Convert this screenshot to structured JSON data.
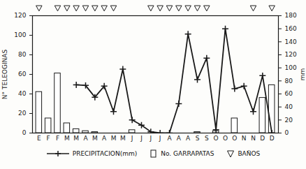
{
  "chart_data": {
    "type": "bar",
    "categories": [
      "E",
      "F",
      "F",
      "M",
      "M",
      "A",
      "M",
      "A",
      "M",
      "M",
      "J",
      "J",
      "J",
      "J",
      "A",
      "A",
      "A",
      "S",
      "S",
      "O",
      "O",
      "O",
      "N",
      "N",
      "D",
      "D"
    ],
    "y_label": "N° TELEOGINAS",
    "y2_label": "mm",
    "ylim": [
      0,
      120
    ],
    "yticks": [
      0,
      20,
      40,
      60,
      80,
      100,
      120
    ],
    "y2lim": [
      0,
      180
    ],
    "y2ticks": [
      0,
      20,
      40,
      60,
      80,
      100,
      120,
      140,
      160,
      180
    ],
    "legend": "bottom",
    "series": [
      {
        "name": "PRECIPITACION(mm)",
        "type": "line",
        "axis": "y2",
        "color": "#1a1a1a",
        "marker": "plus",
        "values": [
          null,
          null,
          null,
          null,
          74,
          73,
          55,
          72,
          33,
          98,
          20,
          12,
          2,
          0,
          0,
          45,
          152,
          82,
          115,
          5,
          160,
          68,
          72,
          33,
          88,
          0
        ]
      },
      {
        "name": "No. GARRAPATAS",
        "type": "bar",
        "color": "#ffffff",
        "values": [
          42,
          15,
          61,
          10,
          4,
          2,
          1,
          0,
          0,
          0,
          3,
          0,
          0,
          0,
          0,
          0,
          0,
          1,
          0,
          2,
          0,
          15,
          0,
          0,
          36,
          49
        ]
      },
      {
        "name": "BAÑOS",
        "type": "marker",
        "marker": "triangle-down",
        "color": "#1a1a1a",
        "values": [
          true,
          null,
          true,
          true,
          true,
          true,
          true,
          true,
          true,
          null,
          null,
          null,
          true,
          true,
          true,
          true,
          true,
          true,
          true,
          null,
          null,
          null,
          null,
          true,
          null,
          true
        ]
      }
    ]
  }
}
